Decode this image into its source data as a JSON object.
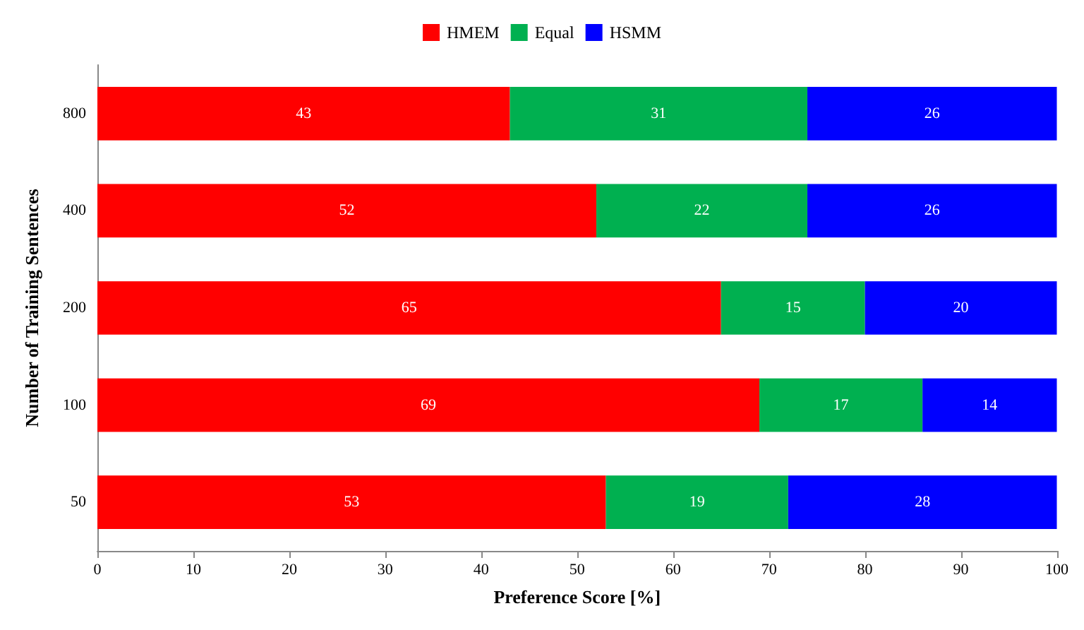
{
  "chart_data": {
    "type": "bar",
    "orientation": "horizontal",
    "stacked": true,
    "xlabel": "Preference Score [%]",
    "ylabel": "Number of Training Sentences",
    "categories": [
      "800",
      "400",
      "200",
      "100",
      "50"
    ],
    "series": [
      {
        "name": "HMEM",
        "color": "#ff0000",
        "values": [
          43,
          52,
          65,
          69,
          53
        ]
      },
      {
        "name": "Equal",
        "color": "#00b050",
        "values": [
          31,
          22,
          15,
          17,
          19
        ]
      },
      {
        "name": "HSMM",
        "color": "#0000ff",
        "values": [
          26,
          26,
          20,
          14,
          28
        ]
      }
    ],
    "xlim": [
      0,
      100
    ],
    "xticks": [
      0,
      10,
      20,
      30,
      40,
      50,
      60,
      70,
      80,
      90,
      100
    ],
    "grid": false,
    "legend": "top",
    "data_labels": true
  }
}
